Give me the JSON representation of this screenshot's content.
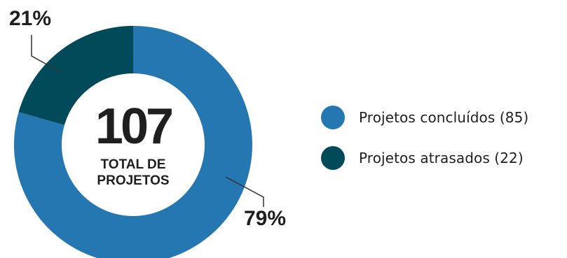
{
  "colors": {
    "concluidos": "#2577b2",
    "atrasados": "#004a5a",
    "text_dark": "#1f1f1f",
    "center_fill": "#ffffff",
    "leader_line": "#333333"
  },
  "chart_data": {
    "type": "pie",
    "variant": "donut",
    "categories": [
      "Projetos concluídos",
      "Projetos atrasados"
    ],
    "values": [
      85,
      22
    ],
    "percent_labels": [
      "79%",
      "21%"
    ],
    "total": 107,
    "center_number": "107",
    "center_caption_line1": "TOTAL DE",
    "center_caption_line2": "PROJETOS",
    "legend_position": "right"
  },
  "legend": {
    "items": [
      {
        "label": "Projetos concluídos (85)",
        "color": "#2577b2"
      },
      {
        "label": "Projetos atrasados (22)",
        "color": "#004a5a"
      }
    ]
  }
}
